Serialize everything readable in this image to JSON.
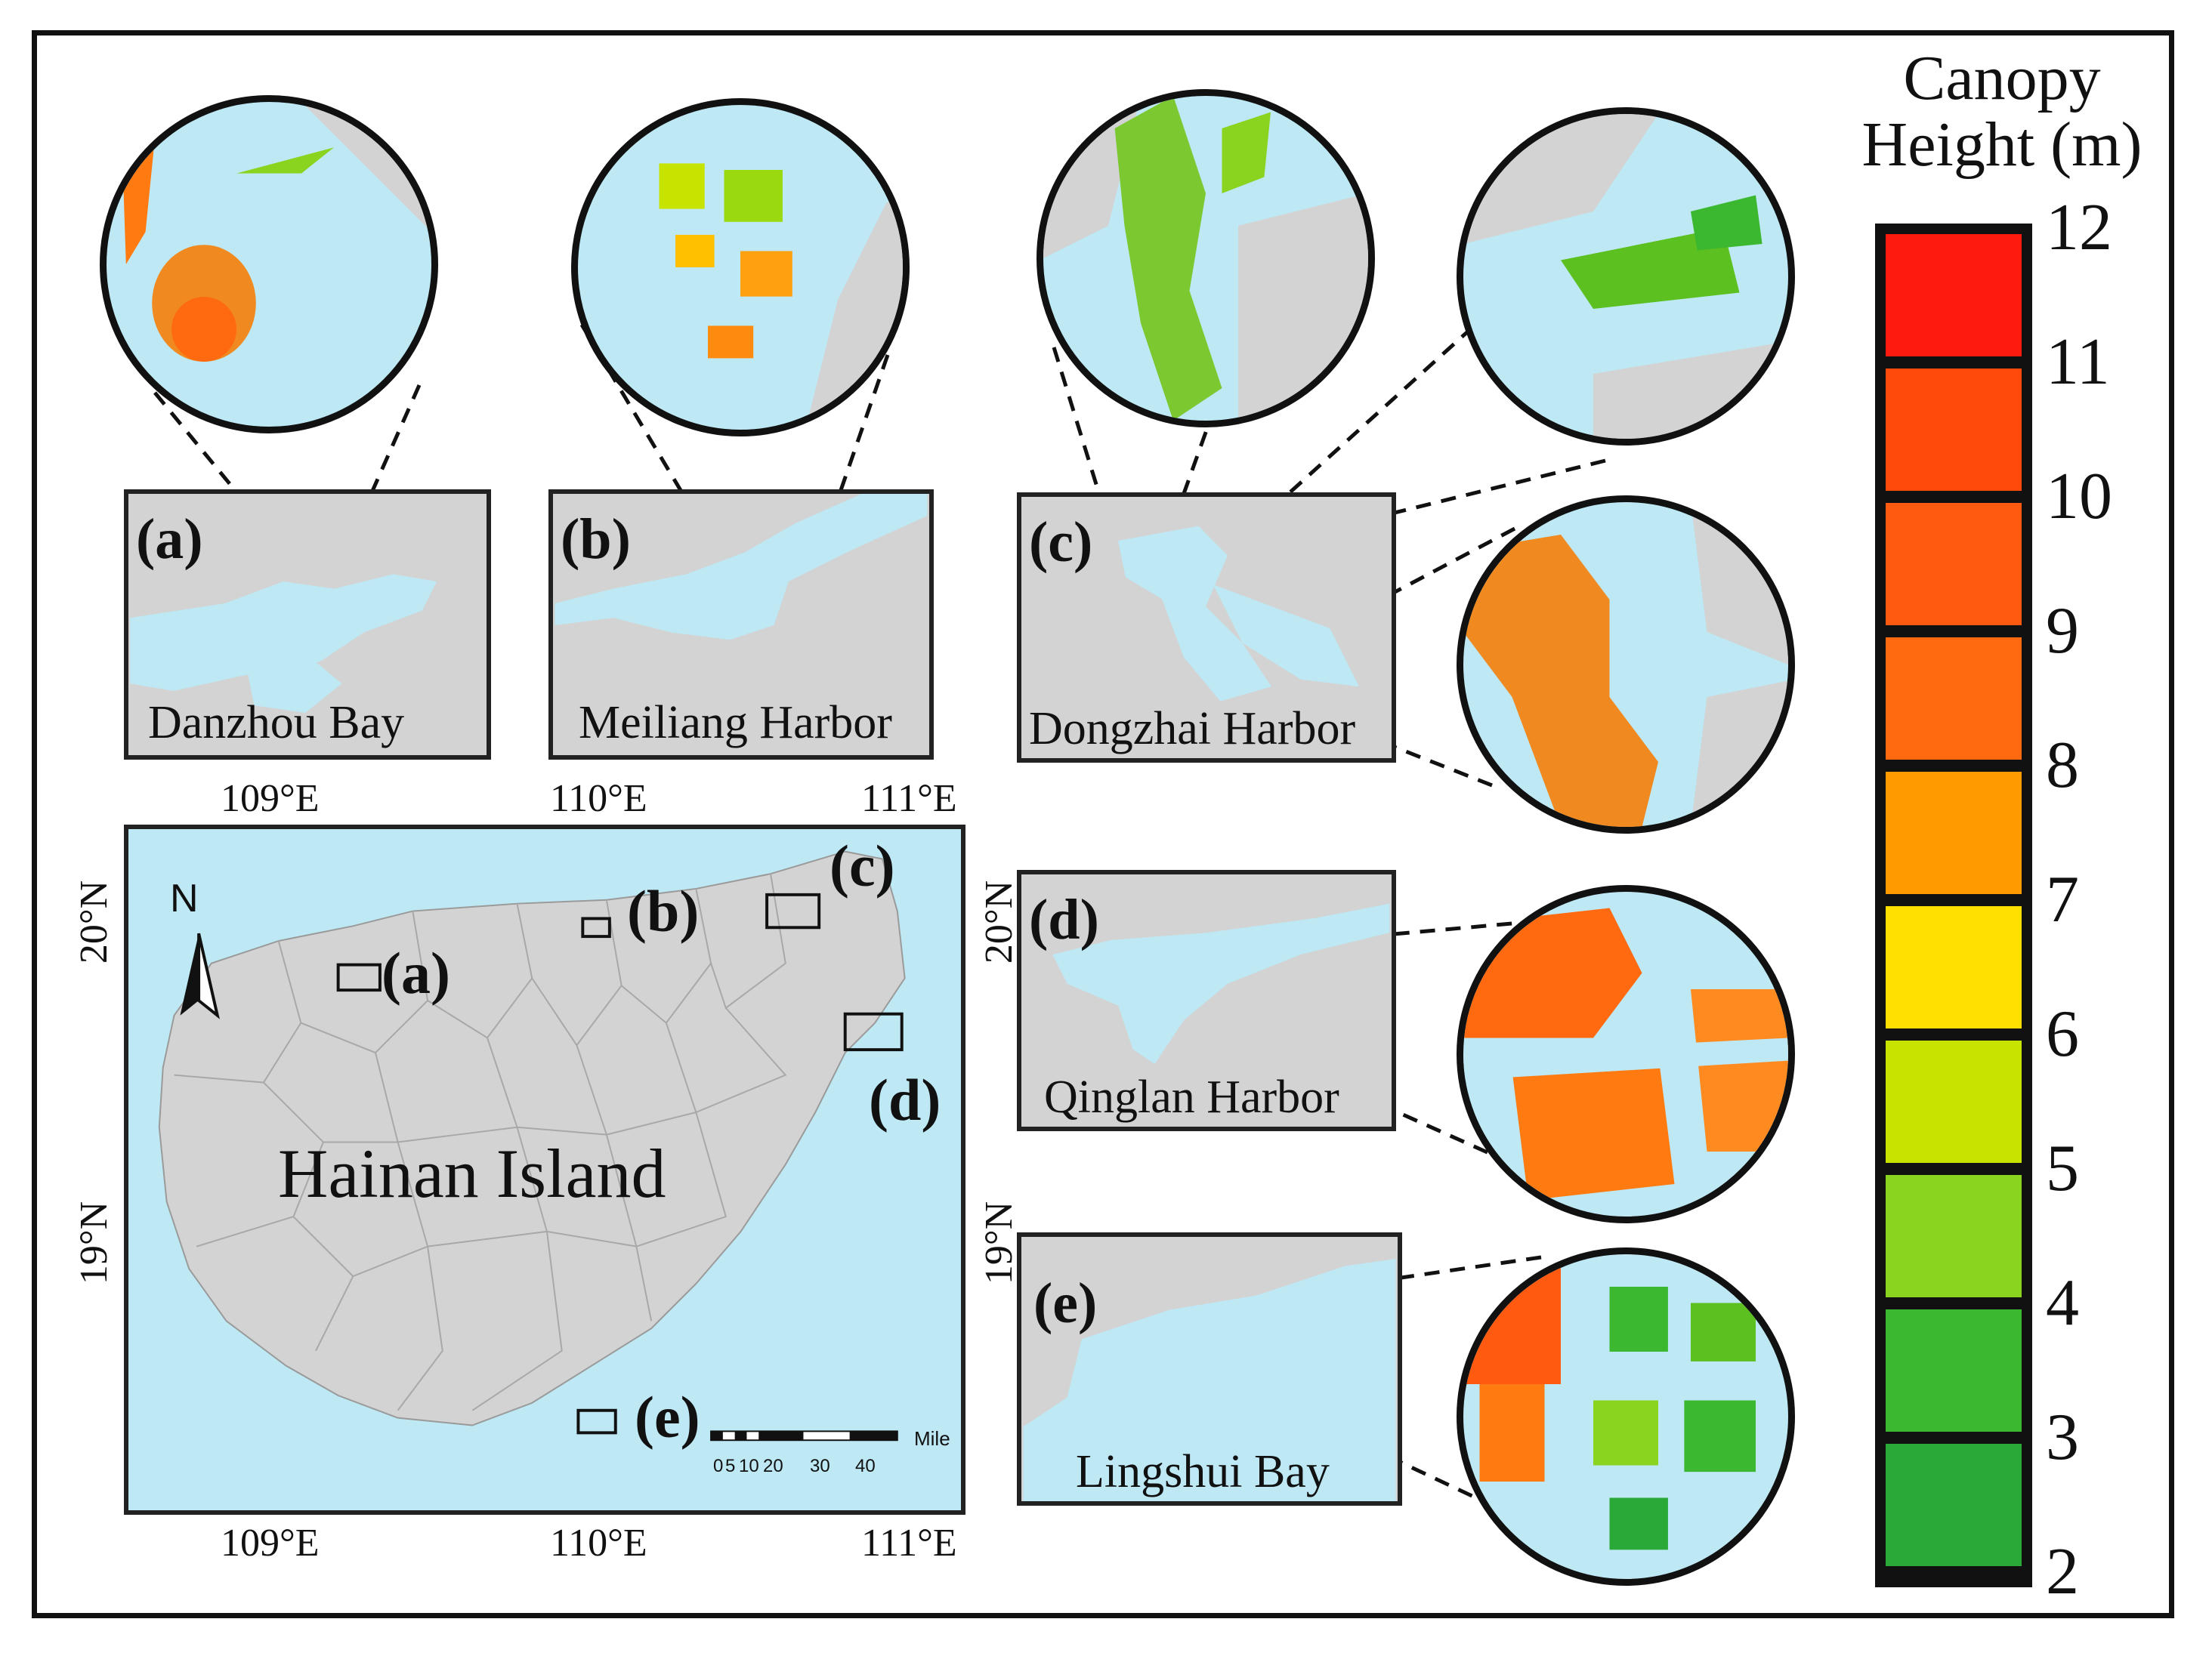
{
  "legend": {
    "title_line1": "Canopy",
    "title_line2": "Height (m)",
    "ticks": [
      "12",
      "11",
      "10",
      "9",
      "8",
      "7",
      "6",
      "5",
      "4",
      "3",
      "2"
    ],
    "colors": [
      "#ff1a10",
      "#ff4a0c",
      "#ff5a10",
      "#ff6a10",
      "#ff9a00",
      "#ffe000",
      "#c6e400",
      "#8ad420",
      "#3cb830",
      "#2aa838"
    ]
  },
  "panels": [
    {
      "id": "a",
      "label": "(a)",
      "name": "Danzhou Bay"
    },
    {
      "id": "b",
      "label": "(b)",
      "name": "Meiliang Harbor"
    },
    {
      "id": "c",
      "label": "(c)",
      "name": "Dongzhai Harbor"
    },
    {
      "id": "d",
      "label": "(d)",
      "name": "Qinglan Harbor"
    },
    {
      "id": "e",
      "label": "(e)",
      "name": "Lingshui Bay"
    }
  ],
  "main_map": {
    "title": "Hainan Island",
    "north": "N",
    "lon_top": [
      "109°E",
      "110°E",
      "111°E"
    ],
    "lon_bottom": [
      "109°E",
      "110°E",
      "111°E"
    ],
    "lat_left": [
      "20°N",
      "19°N"
    ],
    "lat_right": [
      "20°N",
      "19°N"
    ],
    "box_labels": [
      "(a)",
      "(b)",
      "(c)",
      "(d)",
      "(e)"
    ],
    "scale_unit": "Mile",
    "scale_ticks": [
      "0",
      "5",
      "10",
      "20",
      "30",
      "40"
    ]
  },
  "colors": {
    "sea": "#bde8f4",
    "land": "#d3d3d3",
    "border": "#111111"
  }
}
